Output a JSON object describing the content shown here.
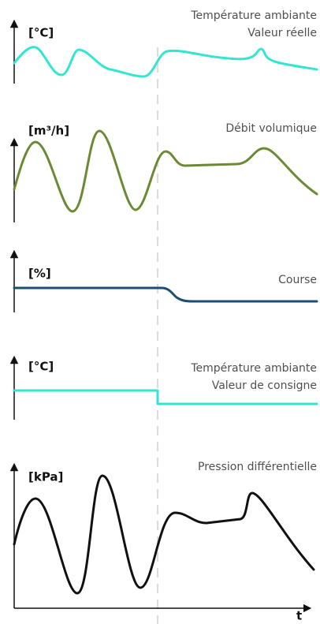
{
  "panels": [
    {
      "unit": "[°C]",
      "title": [
        "Température ambiante",
        "Valeur réelle"
      ]
    },
    {
      "unit": "[m³/h]",
      "title": [
        "Débit volumique"
      ]
    },
    {
      "unit": "[%]",
      "title": [
        "Course"
      ]
    },
    {
      "unit": "[°C]",
      "title": [
        "Température ambiante",
        "Valeur de consigne"
      ]
    },
    {
      "unit": "[kPa]",
      "title": [
        "Pression différentielle"
      ]
    }
  ],
  "time_axis": "t"
}
